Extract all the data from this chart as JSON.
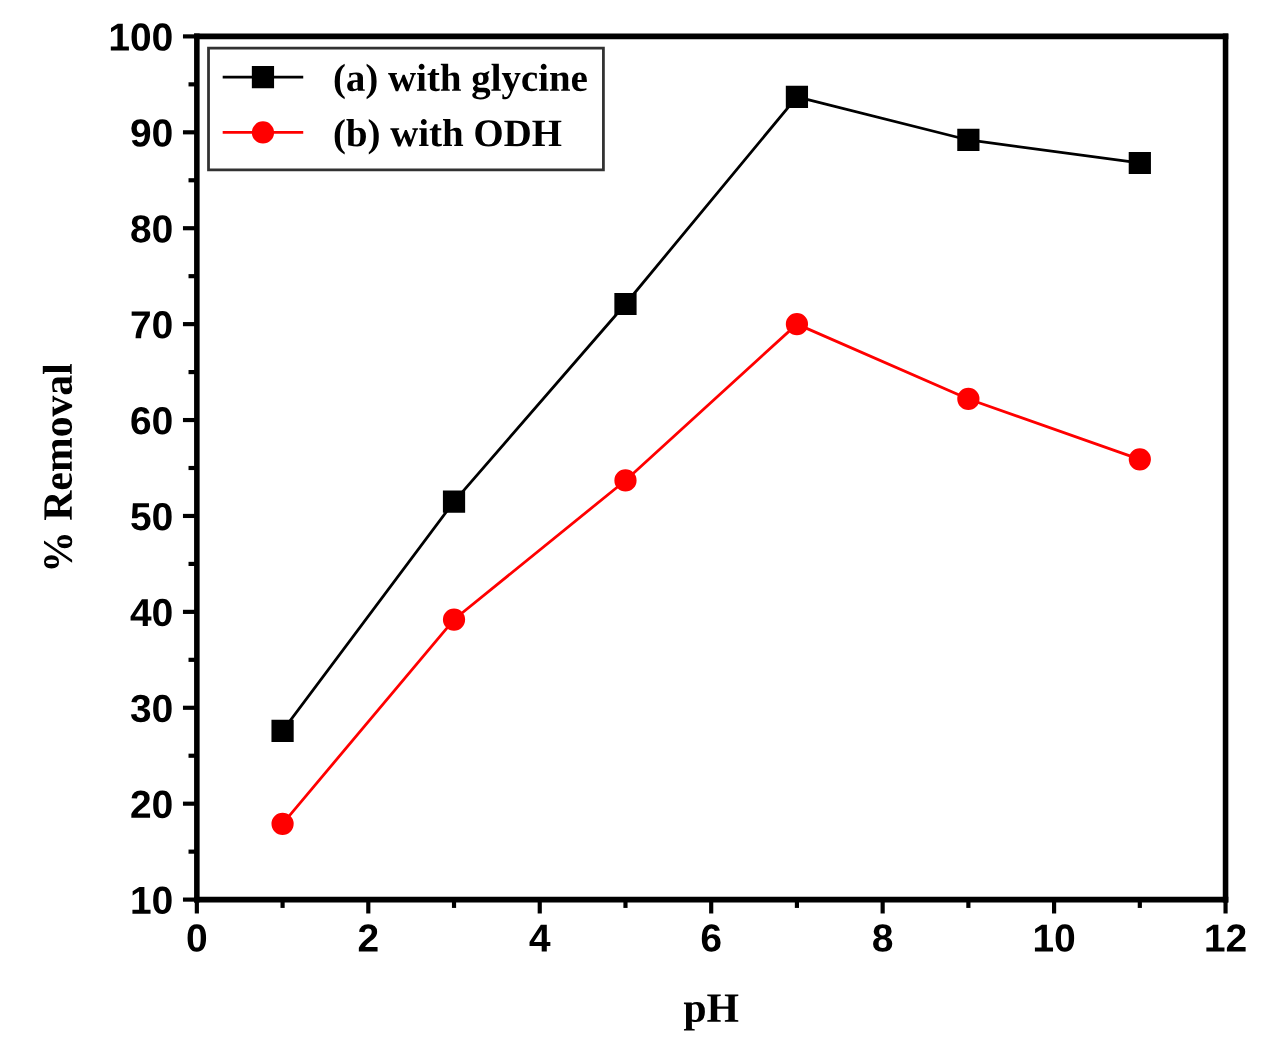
{
  "chart_data": {
    "type": "line",
    "xlabel": "pH",
    "ylabel": "% Removal",
    "x": [
      1,
      3,
      5,
      7,
      9,
      11
    ],
    "series": [
      {
        "name": "(a) with glycine",
        "color": "#000000",
        "marker": "square",
        "values": [
          27.6,
          51.5,
          72.1,
          93.7,
          89.2,
          86.8
        ]
      },
      {
        "name": "(b) with ODH",
        "color": "#ff0000",
        "marker": "circle",
        "values": [
          17.9,
          39.2,
          53.7,
          70.0,
          62.2,
          55.9
        ]
      }
    ],
    "xlim": [
      0,
      12
    ],
    "xticks": [
      0,
      2,
      4,
      6,
      8,
      10,
      12
    ],
    "ylim": [
      10,
      100
    ],
    "yticks": [
      10,
      20,
      30,
      40,
      50,
      60,
      70,
      80,
      90,
      100
    ],
    "grid": false,
    "legend": "top left",
    "line_style": "solid"
  }
}
